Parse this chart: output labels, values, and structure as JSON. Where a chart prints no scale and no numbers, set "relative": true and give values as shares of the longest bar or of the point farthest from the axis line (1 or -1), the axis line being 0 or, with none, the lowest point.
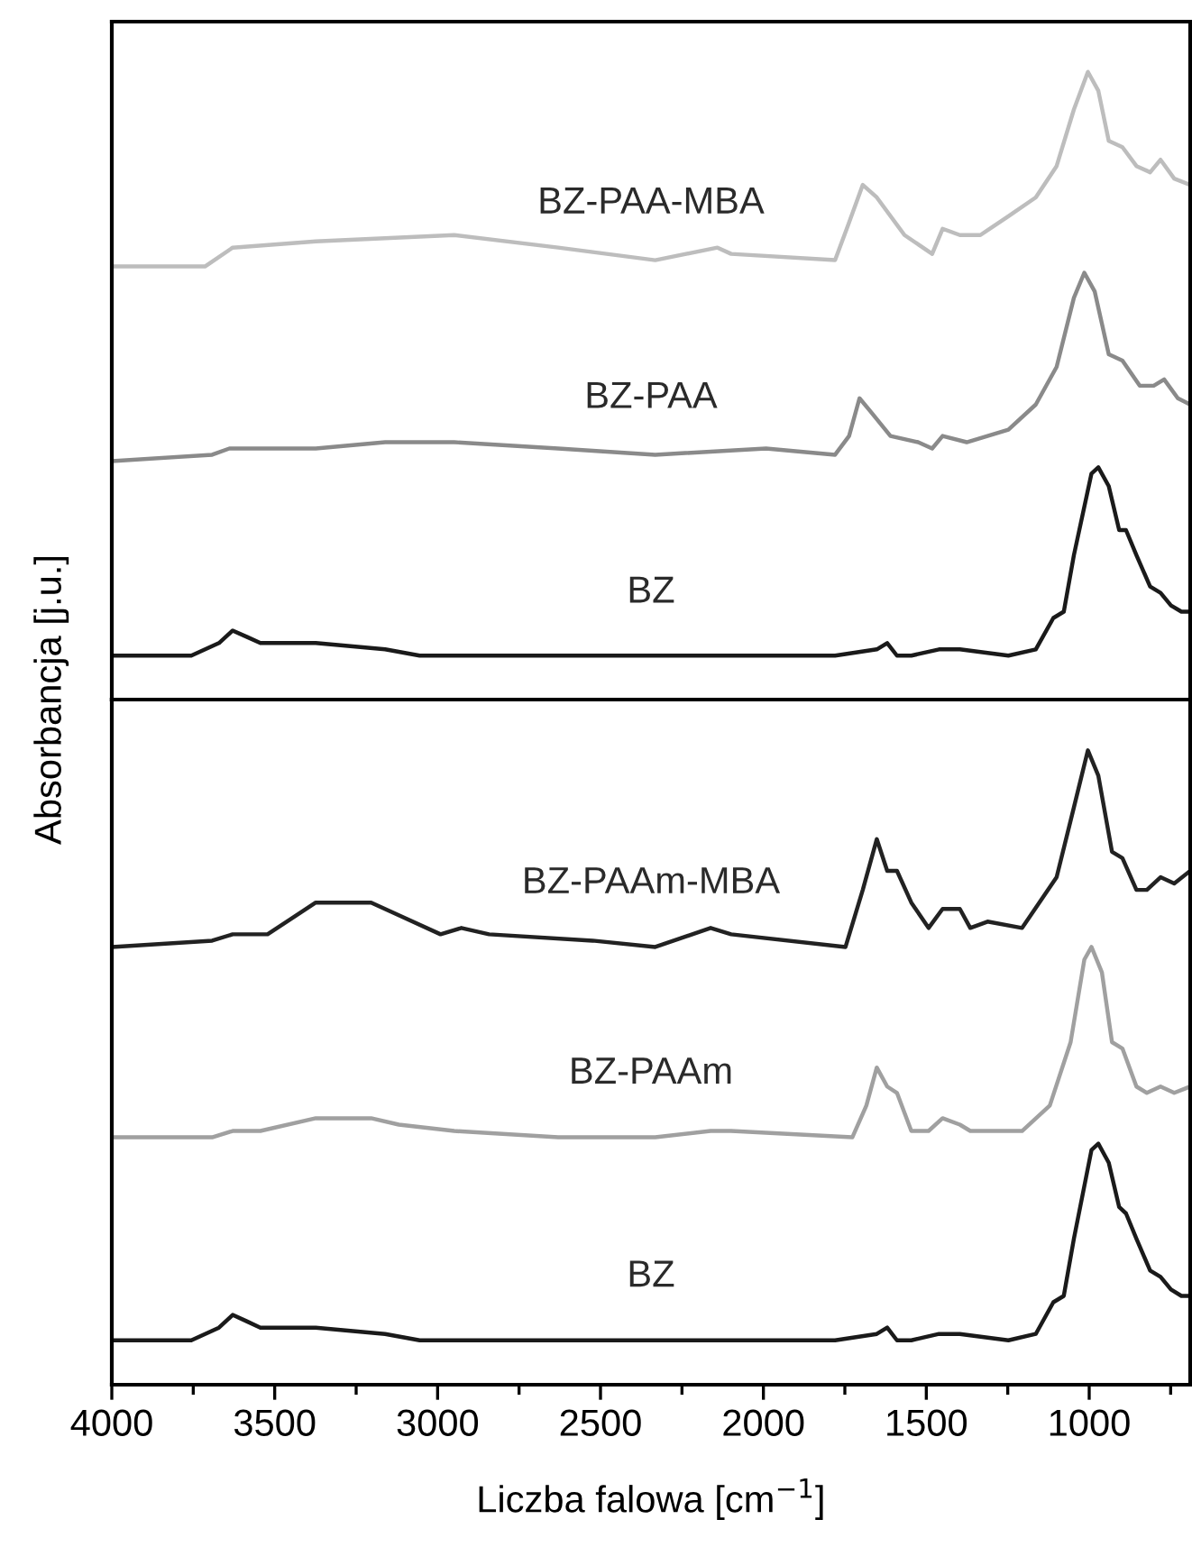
{
  "chart_data": [
    {
      "type": "line",
      "relative": true,
      "xlim": [
        4000,
        690
      ],
      "tick_labels": false,
      "series": [
        {
          "name": "BZ-PAA-MBA",
          "color": "#bdbdbd",
          "x": [
            4000,
            3714,
            3629,
            3374,
            2949,
            2630,
            2332,
            2141,
            2099,
            1780,
            1737,
            1695,
            1652,
            1567,
            1482,
            1450,
            1397,
            1334,
            1248,
            1164,
            1100,
            1047,
            1004,
            972,
            940,
            898,
            855,
            813,
            781,
            739,
            690
          ],
          "values": [
            0.69,
            0.69,
            0.72,
            0.73,
            0.74,
            0.72,
            0.7,
            0.72,
            0.71,
            0.7,
            0.76,
            0.82,
            0.8,
            0.74,
            0.71,
            0.75,
            0.74,
            0.74,
            0.77,
            0.8,
            0.85,
            0.94,
            1.0,
            0.97,
            0.89,
            0.88,
            0.85,
            0.84,
            0.86,
            0.83,
            0.82
          ]
        },
        {
          "name": "BZ-PAA",
          "color": "#8a8a8a",
          "x": [
            4000,
            3692,
            3639,
            3374,
            3161,
            2949,
            2630,
            2332,
            1992,
            1780,
            1737,
            1705,
            1673,
            1610,
            1525,
            1482,
            1450,
            1376,
            1248,
            1164,
            1100,
            1047,
            1015,
            983,
            940,
            898,
            845,
            802,
            770,
            728,
            690
          ],
          "values": [
            0.38,
            0.39,
            0.4,
            0.4,
            0.41,
            0.41,
            0.4,
            0.39,
            0.4,
            0.39,
            0.42,
            0.48,
            0.46,
            0.42,
            0.41,
            0.4,
            0.42,
            0.41,
            0.43,
            0.47,
            0.53,
            0.64,
            0.68,
            0.65,
            0.55,
            0.54,
            0.5,
            0.5,
            0.51,
            0.48,
            0.47
          ]
        },
        {
          "name": "BZ",
          "color": "#1a1a1a",
          "x": [
            4000,
            3756,
            3671,
            3629,
            3586,
            3544,
            3374,
            3161,
            3055,
            2524,
            1780,
            1652,
            1620,
            1590,
            1546,
            1461,
            1397,
            1248,
            1164,
            1110,
            1078,
            1047,
            993,
            972,
            940,
            908,
            887,
            855,
            813,
            781,
            749,
            717,
            690
          ],
          "values": [
            0.07,
            0.07,
            0.09,
            0.11,
            0.1,
            0.09,
            0.09,
            0.08,
            0.07,
            0.07,
            0.07,
            0.08,
            0.09,
            0.07,
            0.07,
            0.08,
            0.08,
            0.07,
            0.08,
            0.13,
            0.14,
            0.23,
            0.36,
            0.37,
            0.34,
            0.27,
            0.27,
            0.23,
            0.18,
            0.17,
            0.15,
            0.14,
            0.14
          ]
        }
      ]
    },
    {
      "type": "line",
      "relative": true,
      "xlim": [
        4000,
        690
      ],
      "tick_labels": "x",
      "xlabel": "Liczba falowa [cm$^{−1}$]",
      "ylabel": "Absorbancja [j.u.]",
      "xticks": [
        4000,
        {
          "value": 3750,
          "label": null
        },
        3500,
        {
          "value": 3250,
          "label": null
        },
        3000,
        {
          "value": 2750,
          "label": null
        },
        2500,
        {
          "value": 2250,
          "label": null
        },
        2000,
        {
          "value": 1750,
          "label": null
        },
        1500,
        {
          "value": 1250,
          "label": null
        },
        1000,
        {
          "value": 750,
          "label": null
        }
      ],
      "series": [
        {
          "name": "BZ-PAAm-MBA",
          "color": "#222222",
          "x": [
            4000,
            3692,
            3629,
            3522,
            3374,
            3204,
            3119,
            2991,
            2927,
            2842,
            2524,
            2332,
            2162,
            2099,
            1748,
            1695,
            1652,
            1620,
            1590,
            1546,
            1493,
            1450,
            1397,
            1365,
            1312,
            1206,
            1100,
            1047,
            1004,
            972,
            930,
            898,
            855,
            823,
            781,
            739,
            690
          ],
          "values": [
            0.69,
            0.7,
            0.71,
            0.71,
            0.76,
            0.76,
            0.74,
            0.71,
            0.72,
            0.71,
            0.7,
            0.69,
            0.72,
            0.71,
            0.69,
            0.78,
            0.86,
            0.81,
            0.81,
            0.76,
            0.72,
            0.75,
            0.75,
            0.72,
            0.73,
            0.72,
            0.8,
            0.91,
            1.0,
            0.96,
            0.84,
            0.83,
            0.78,
            0.78,
            0.8,
            0.79,
            0.81
          ]
        },
        {
          "name": "BZ-PAAm",
          "color": "#a0a0a0",
          "x": [
            4000,
            3692,
            3629,
            3544,
            3374,
            3204,
            3119,
            2949,
            2630,
            2332,
            2162,
            2099,
            1727,
            1684,
            1652,
            1620,
            1590,
            1546,
            1493,
            1450,
            1397,
            1365,
            1312,
            1206,
            1121,
            1057,
            1015,
            993,
            961,
            930,
            898,
            855,
            823,
            781,
            739,
            690
          ],
          "values": [
            0.39,
            0.39,
            0.4,
            0.4,
            0.42,
            0.42,
            0.41,
            0.4,
            0.39,
            0.39,
            0.4,
            0.4,
            0.39,
            0.44,
            0.5,
            0.47,
            0.46,
            0.4,
            0.4,
            0.42,
            0.41,
            0.4,
            0.4,
            0.4,
            0.44,
            0.54,
            0.67,
            0.69,
            0.65,
            0.54,
            0.53,
            0.47,
            0.46,
            0.47,
            0.46,
            0.47
          ]
        },
        {
          "name": "BZ",
          "color": "#1a1a1a",
          "x": [
            4000,
            3756,
            3671,
            3629,
            3586,
            3544,
            3374,
            3161,
            3055,
            2524,
            1780,
            1652,
            1620,
            1590,
            1546,
            1461,
            1397,
            1248,
            1164,
            1110,
            1078,
            1047,
            993,
            972,
            940,
            908,
            887,
            855,
            813,
            781,
            749,
            717,
            690
          ],
          "values": [
            0.07,
            0.07,
            0.09,
            0.11,
            0.1,
            0.09,
            0.09,
            0.08,
            0.07,
            0.07,
            0.07,
            0.08,
            0.09,
            0.07,
            0.07,
            0.08,
            0.08,
            0.07,
            0.08,
            0.13,
            0.14,
            0.23,
            0.37,
            0.38,
            0.35,
            0.28,
            0.27,
            0.23,
            0.18,
            0.17,
            0.15,
            0.14,
            0.14
          ]
        }
      ]
    }
  ]
}
